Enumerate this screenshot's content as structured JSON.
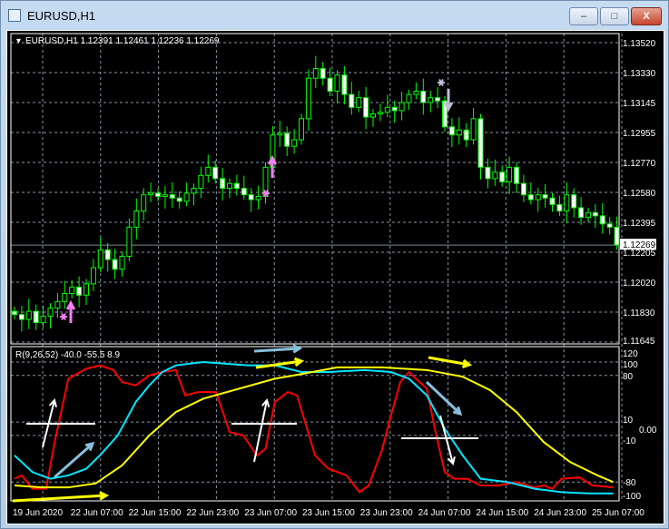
{
  "window": {
    "title": "EURUSD,H1",
    "minimize": "–",
    "maximize": "□",
    "close": "X"
  },
  "colors": {
    "bg": "#000000",
    "grid": "#8796a8",
    "bull": "#00ff00",
    "red": "#ff0000",
    "cyan": "#00e5ff",
    "yellow": "#ffff00",
    "pink": "#ee82ee",
    "silver": "#c0c0d8",
    "lightblue": "#87bfdd"
  },
  "main": {
    "header": "EURUSD,H1  1.12391 1.12461 1.12236 1.12269",
    "price_ticks": [
      "1.13520",
      "1.13330",
      "1.13145",
      "1.12955",
      "1.12770",
      "1.12580",
      "1.12395",
      "1.12205",
      "1.12020",
      "1.11830",
      "1.11645"
    ],
    "current_price": "1.12269",
    "closes": [
      1.1184,
      1.1181,
      1.1186,
      1.1179,
      1.1183,
      1.1188,
      1.1192,
      1.1197,
      1.1201,
      1.1196,
      1.1203,
      1.1213,
      1.1224,
      1.1218,
      1.1212,
      1.122,
      1.1238,
      1.1248,
      1.1258,
      1.1259,
      1.1257,
      1.1258,
      1.1256,
      1.1254,
      1.1259,
      1.1262,
      1.127,
      1.1275,
      1.1268,
      1.1262,
      1.1265,
      1.1262,
      1.1258,
      1.1255,
      1.1257,
      1.1275,
      1.1295,
      1.1296,
      1.1288,
      1.1292,
      1.1305,
      1.133,
      1.1336,
      1.133,
      1.1322,
      1.1332,
      1.132,
      1.1312,
      1.1318,
      1.1306,
      1.1308,
      1.1309,
      1.1312,
      1.131,
      1.1315,
      1.132,
      1.1322,
      1.1315,
      1.1318,
      1.1316,
      1.13,
      1.1295,
      1.1298,
      1.1292,
      1.1305,
      1.1275,
      1.1268,
      1.1272,
      1.1266,
      1.1275,
      1.1265,
      1.1258,
      1.1255,
      1.1258,
      1.1256,
      1.1252,
      1.1248,
      1.1258,
      1.125,
      1.1244,
      1.1247,
      1.1245,
      1.124,
      1.1238,
      1.1227
    ]
  },
  "indicator": {
    "header": "R(9,26,52) -40.0 -55.5 8.9",
    "level_ticks": [
      "120",
      "100",
      "80",
      "10",
      "0.00",
      "-10",
      "-80",
      "-100"
    ],
    "red": [
      [
        0,
        -75
      ],
      [
        1,
        -70
      ],
      [
        2.5,
        -90
      ],
      [
        4.4,
        -90
      ],
      [
        5.6,
        -20
      ],
      [
        7.5,
        75
      ],
      [
        10,
        90
      ],
      [
        11.9,
        95
      ],
      [
        13.8,
        88
      ],
      [
        15,
        70
      ],
      [
        16.9,
        65
      ],
      [
        18.8,
        80
      ],
      [
        20.6,
        85
      ],
      [
        22.5,
        88
      ],
      [
        23.8,
        50
      ],
      [
        25.6,
        55
      ],
      [
        28.1,
        55
      ],
      [
        30,
        -5
      ],
      [
        31.9,
        -10
      ],
      [
        33.8,
        -40
      ],
      [
        35,
        -30
      ],
      [
        36.3,
        40
      ],
      [
        38.1,
        55
      ],
      [
        39.4,
        50
      ],
      [
        41.9,
        -40
      ],
      [
        43.8,
        -60
      ],
      [
        46.3,
        -70
      ],
      [
        48.1,
        -95
      ],
      [
        49.4,
        -85
      ],
      [
        51.3,
        -30
      ],
      [
        52.5,
        20
      ],
      [
        53.8,
        70
      ],
      [
        55,
        85
      ],
      [
        57.5,
        60
      ],
      [
        58.8,
        -10
      ],
      [
        60,
        -65
      ],
      [
        61.3,
        -75
      ],
      [
        63.1,
        -75
      ],
      [
        65,
        -85
      ],
      [
        67.5,
        -85
      ],
      [
        70,
        -80
      ],
      [
        72.5,
        -88
      ],
      [
        73.8,
        -85
      ],
      [
        75,
        -90
      ],
      [
        76.3,
        -75
      ],
      [
        78.8,
        -73
      ],
      [
        80.6,
        -85
      ],
      [
        83.5,
        -88
      ]
    ],
    "cyan": [
      [
        0,
        -40
      ],
      [
        2.5,
        -65
      ],
      [
        5,
        -75
      ],
      [
        7.5,
        -70
      ],
      [
        10,
        -60
      ],
      [
        11.9,
        -40
      ],
      [
        14.4,
        -10
      ],
      [
        16.9,
        40
      ],
      [
        18.8,
        65
      ],
      [
        20.6,
        85
      ],
      [
        22.5,
        95
      ],
      [
        26.3,
        100
      ],
      [
        28.8,
        98
      ],
      [
        32.5,
        95
      ],
      [
        36.3,
        95
      ],
      [
        40,
        85
      ],
      [
        43.8,
        85
      ],
      [
        48.8,
        88
      ],
      [
        52.5,
        85
      ],
      [
        55,
        75
      ],
      [
        57.5,
        50
      ],
      [
        60,
        0
      ],
      [
        62.5,
        -40
      ],
      [
        65,
        -75
      ],
      [
        68.8,
        -80
      ],
      [
        72.5,
        -90
      ],
      [
        76.3,
        -95
      ],
      [
        80,
        -97
      ],
      [
        83.5,
        -97
      ]
    ],
    "yellow": [
      [
        0,
        -85
      ],
      [
        3.8,
        -88
      ],
      [
        7.5,
        -88
      ],
      [
        11.3,
        -82
      ],
      [
        15,
        -55
      ],
      [
        18.8,
        -10
      ],
      [
        22.5,
        25
      ],
      [
        26.3,
        45
      ],
      [
        31.3,
        60
      ],
      [
        36.3,
        75
      ],
      [
        40,
        82
      ],
      [
        45,
        92
      ],
      [
        51.3,
        92
      ],
      [
        57.5,
        88
      ],
      [
        62.5,
        78
      ],
      [
        66.3,
        58
      ],
      [
        70,
        25
      ],
      [
        73.8,
        -20
      ],
      [
        77.5,
        -50
      ],
      [
        81.3,
        -70
      ],
      [
        83.5,
        -80
      ]
    ]
  },
  "time_ticks": [
    "19 Jun 2020",
    "22 Jun 07:00",
    "22 Jun 15:00",
    "22 Jun 23:00",
    "23 Jun 07:00",
    "23 Jun 15:00",
    "23 Jun 23:00",
    "24 Jun 07:00",
    "24 Jun 15:00",
    "24 Jun 23:00",
    "25 Jun 07:00"
  ]
}
